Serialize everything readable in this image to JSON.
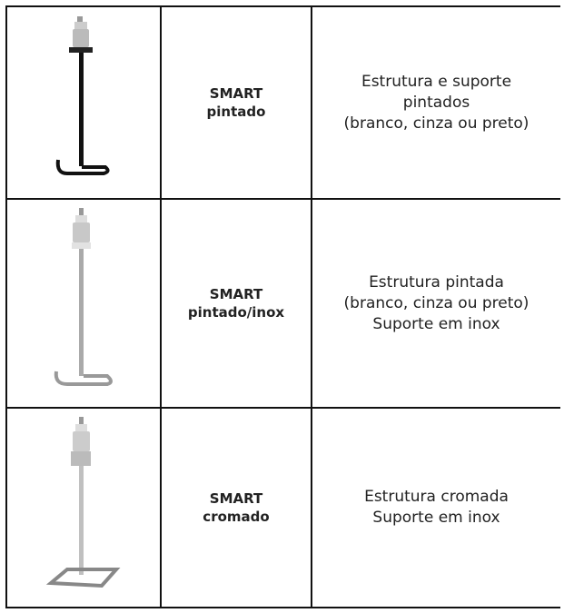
{
  "table": {
    "rows": [
      {
        "product": [
          "SMART",
          "pintado"
        ],
        "description": [
          "Estrutura e suporte",
          "pintados",
          "(branco, cinza ou preto)"
        ]
      },
      {
        "product": [
          "SMART",
          "pintado/inox"
        ],
        "description": [
          "Estrutura pintada",
          "(branco, cinza ou preto)",
          "Suporte em inox"
        ]
      },
      {
        "product": [
          "SMART",
          "cromado"
        ],
        "description": [
          "Estrutura cromada",
          "Suporte em inox"
        ]
      }
    ]
  }
}
